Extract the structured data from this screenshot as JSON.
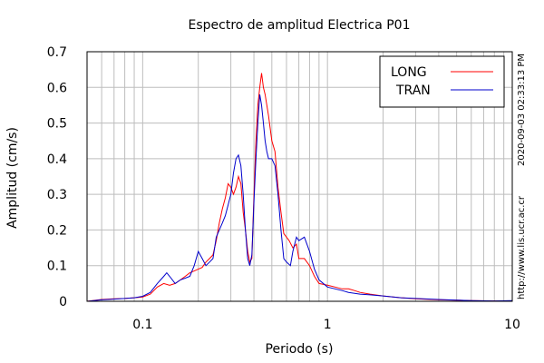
{
  "chart_data": {
    "type": "line",
    "title": "Espectro de amplitud Electrica P01",
    "xlabel": "Periodo (s)",
    "ylabel": "Amplitud (cm/s)",
    "xscale": "log",
    "xlim": [
      0.05,
      10
    ],
    "ylim": [
      0,
      0.7
    ],
    "x_ticks": [
      {
        "value": 0.1,
        "label": "0.1"
      },
      {
        "value": 1,
        "label": "1"
      },
      {
        "value": 10,
        "label": "10"
      }
    ],
    "y_ticks": [
      {
        "value": 0,
        "label": "0"
      },
      {
        "value": 0.1,
        "label": "0.1"
      },
      {
        "value": 0.2,
        "label": "0.2"
      },
      {
        "value": 0.3,
        "label": "0.3"
      },
      {
        "value": 0.4,
        "label": "0.4"
      },
      {
        "value": 0.5,
        "label": "0.5"
      },
      {
        "value": 0.6,
        "label": "0.6"
      },
      {
        "value": 0.7,
        "label": "0.7"
      }
    ],
    "grid": true,
    "legend_position": "top-right",
    "series": [
      {
        "name": "LONG",
        "color": "#ff0000",
        "points": [
          [
            0.05,
            0.0
          ],
          [
            0.06,
            0.005
          ],
          [
            0.07,
            0.007
          ],
          [
            0.08,
            0.008
          ],
          [
            0.09,
            0.01
          ],
          [
            0.1,
            0.012
          ],
          [
            0.11,
            0.02
          ],
          [
            0.12,
            0.04
          ],
          [
            0.13,
            0.05
          ],
          [
            0.14,
            0.045
          ],
          [
            0.15,
            0.05
          ],
          [
            0.16,
            0.06
          ],
          [
            0.17,
            0.07
          ],
          [
            0.18,
            0.08
          ],
          [
            0.19,
            0.085
          ],
          [
            0.2,
            0.09
          ],
          [
            0.21,
            0.095
          ],
          [
            0.22,
            0.11
          ],
          [
            0.23,
            0.12
          ],
          [
            0.24,
            0.13
          ],
          [
            0.25,
            0.17
          ],
          [
            0.26,
            0.22
          ],
          [
            0.27,
            0.26
          ],
          [
            0.28,
            0.29
          ],
          [
            0.29,
            0.33
          ],
          [
            0.3,
            0.32
          ],
          [
            0.31,
            0.3
          ],
          [
            0.32,
            0.32
          ],
          [
            0.33,
            0.35
          ],
          [
            0.34,
            0.33
          ],
          [
            0.35,
            0.25
          ],
          [
            0.36,
            0.2
          ],
          [
            0.37,
            0.14
          ],
          [
            0.38,
            0.11
          ],
          [
            0.39,
            0.12
          ],
          [
            0.4,
            0.3
          ],
          [
            0.41,
            0.45
          ],
          [
            0.42,
            0.55
          ],
          [
            0.43,
            0.6
          ],
          [
            0.44,
            0.64
          ],
          [
            0.45,
            0.6
          ],
          [
            0.46,
            0.58
          ],
          [
            0.47,
            0.55
          ],
          [
            0.48,
            0.52
          ],
          [
            0.5,
            0.45
          ],
          [
            0.52,
            0.42
          ],
          [
            0.54,
            0.32
          ],
          [
            0.56,
            0.25
          ],
          [
            0.58,
            0.19
          ],
          [
            0.6,
            0.18
          ],
          [
            0.62,
            0.17
          ],
          [
            0.65,
            0.15
          ],
          [
            0.68,
            0.16
          ],
          [
            0.7,
            0.12
          ],
          [
            0.75,
            0.12
          ],
          [
            0.8,
            0.1
          ],
          [
            0.85,
            0.07
          ],
          [
            0.9,
            0.05
          ],
          [
            1.0,
            0.045
          ],
          [
            1.1,
            0.04
          ],
          [
            1.2,
            0.035
          ],
          [
            1.3,
            0.035
          ],
          [
            1.4,
            0.03
          ],
          [
            1.5,
            0.025
          ],
          [
            1.7,
            0.02
          ],
          [
            2.0,
            0.015
          ],
          [
            2.5,
            0.01
          ],
          [
            3.0,
            0.007
          ],
          [
            4.0,
            0.004
          ],
          [
            5.0,
            0.003
          ],
          [
            6.0,
            0.002
          ],
          [
            8.0,
            0.001
          ],
          [
            10.0,
            0.001
          ]
        ]
      },
      {
        "name": "TRAN",
        "color": "#0000cc",
        "points": [
          [
            0.05,
            0.0
          ],
          [
            0.06,
            0.004
          ],
          [
            0.07,
            0.006
          ],
          [
            0.08,
            0.008
          ],
          [
            0.09,
            0.01
          ],
          [
            0.1,
            0.014
          ],
          [
            0.11,
            0.025
          ],
          [
            0.12,
            0.05
          ],
          [
            0.13,
            0.07
          ],
          [
            0.135,
            0.08
          ],
          [
            0.14,
            0.07
          ],
          [
            0.15,
            0.05
          ],
          [
            0.16,
            0.06
          ],
          [
            0.17,
            0.065
          ],
          [
            0.18,
            0.07
          ],
          [
            0.19,
            0.1
          ],
          [
            0.2,
            0.14
          ],
          [
            0.21,
            0.12
          ],
          [
            0.22,
            0.1
          ],
          [
            0.23,
            0.11
          ],
          [
            0.24,
            0.12
          ],
          [
            0.25,
            0.18
          ],
          [
            0.26,
            0.2
          ],
          [
            0.27,
            0.22
          ],
          [
            0.28,
            0.24
          ],
          [
            0.29,
            0.27
          ],
          [
            0.3,
            0.3
          ],
          [
            0.31,
            0.36
          ],
          [
            0.32,
            0.4
          ],
          [
            0.33,
            0.41
          ],
          [
            0.34,
            0.38
          ],
          [
            0.35,
            0.3
          ],
          [
            0.36,
            0.2
          ],
          [
            0.37,
            0.12
          ],
          [
            0.38,
            0.1
          ],
          [
            0.39,
            0.13
          ],
          [
            0.4,
            0.28
          ],
          [
            0.41,
            0.4
          ],
          [
            0.42,
            0.5
          ],
          [
            0.43,
            0.58
          ],
          [
            0.44,
            0.55
          ],
          [
            0.45,
            0.5
          ],
          [
            0.46,
            0.45
          ],
          [
            0.47,
            0.42
          ],
          [
            0.48,
            0.4
          ],
          [
            0.5,
            0.4
          ],
          [
            0.52,
            0.38
          ],
          [
            0.54,
            0.3
          ],
          [
            0.56,
            0.2
          ],
          [
            0.58,
            0.12
          ],
          [
            0.6,
            0.11
          ],
          [
            0.63,
            0.1
          ],
          [
            0.65,
            0.14
          ],
          [
            0.68,
            0.18
          ],
          [
            0.7,
            0.17
          ],
          [
            0.75,
            0.18
          ],
          [
            0.8,
            0.14
          ],
          [
            0.85,
            0.09
          ],
          [
            0.9,
            0.06
          ],
          [
            1.0,
            0.04
          ],
          [
            1.1,
            0.035
          ],
          [
            1.2,
            0.03
          ],
          [
            1.3,
            0.025
          ],
          [
            1.5,
            0.02
          ],
          [
            1.7,
            0.018
          ],
          [
            2.0,
            0.015
          ],
          [
            2.5,
            0.01
          ],
          [
            3.0,
            0.008
          ],
          [
            4.0,
            0.005
          ],
          [
            5.0,
            0.003
          ],
          [
            6.0,
            0.002
          ],
          [
            8.0,
            0.001
          ],
          [
            10.0,
            0.002
          ]
        ]
      }
    ],
    "annotations": [
      {
        "text": "2020-09-03 02:33:13 PM"
      },
      {
        "text": "http://www.lis.ucr.ac.cr"
      }
    ]
  }
}
